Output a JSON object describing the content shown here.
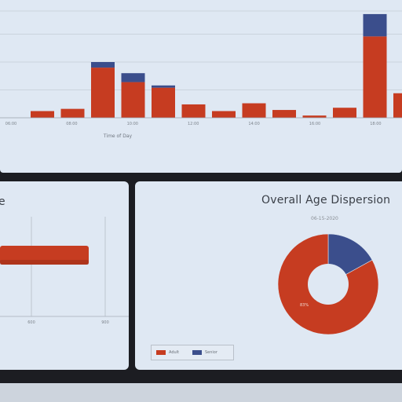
{
  "colors": {
    "red": "#c63c21",
    "blue": "#3b4e8c",
    "panel_bg": "#dfe8f3",
    "frame": "#1c1d22"
  },
  "top_chart": {
    "chart_data": {
      "type": "bar",
      "stacked": true,
      "xlabel": "Time of Day",
      "tick_labels": [
        "06:00",
        "08:00",
        "10:00",
        "12:00",
        "14:00",
        "16:00",
        "18:00",
        "20:00",
        "22:00"
      ],
      "ylim": [
        0,
        100
      ],
      "grid": true,
      "series": [
        {
          "values": [
            0,
            6,
            8,
            45,
            32,
            27,
            12,
            6,
            13,
            7,
            2,
            9,
            73,
            22
          ]
        },
        {
          "values": [
            0,
            0,
            0,
            5,
            8,
            2,
            0,
            0,
            0,
            0,
            0,
            0,
            20,
            0
          ]
        }
      ]
    }
  },
  "left_panel": {
    "title": "e",
    "chart_data": {
      "type": "bar",
      "orientation": "horizontal",
      "values": [
        600
      ],
      "xlim": [
        0,
        900
      ],
      "tick_labels": [
        "600",
        "900"
      ]
    }
  },
  "right_panel": {
    "title": "Overall Age Dispersion",
    "subtitle": "06-15-2020",
    "chart_data": {
      "type": "pie",
      "donut": true,
      "slices": [
        {
          "label": "Adult",
          "value": 83
        },
        {
          "label": "Senior",
          "value": 17
        }
      ],
      "data_label": "83%"
    },
    "legend": [
      {
        "label": "Adult"
      },
      {
        "label": "Senior"
      }
    ]
  }
}
